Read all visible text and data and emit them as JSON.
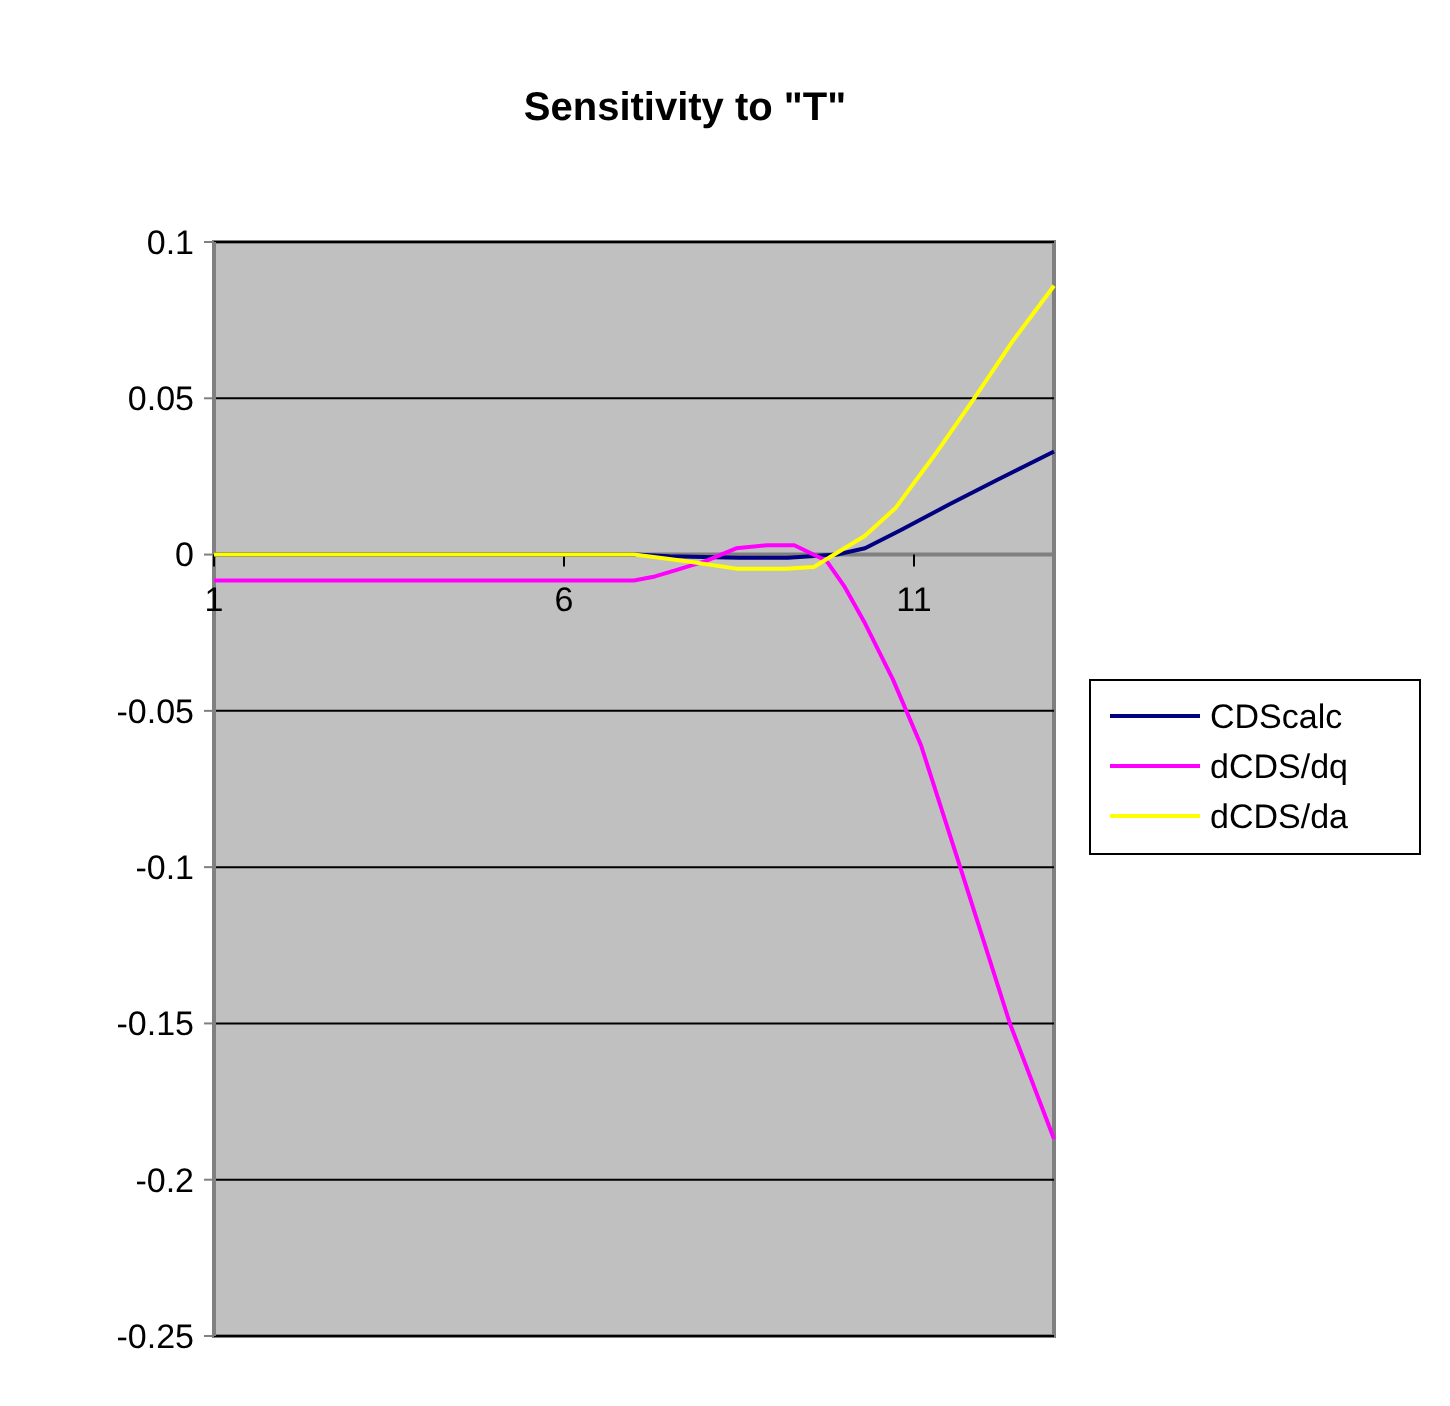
{
  "chart_data": {
    "type": "line",
    "title": "Sensitivity to \"T\"",
    "xlim": [
      1,
      13
    ],
    "xticks": [
      1,
      6,
      11
    ],
    "ylim": [
      -0.25,
      0.1
    ],
    "yticks": [
      0.1,
      0.05,
      0,
      -0.05,
      -0.1,
      -0.15,
      -0.2,
      -0.25
    ],
    "grid": "y",
    "legend": "right",
    "marker": "none",
    "line_style": "solid",
    "series": [
      {
        "name": "CDScalc",
        "color": "#000080",
        "x": [
          1,
          7,
          7.5,
          8.5,
          9.2,
          9.9,
          10.3,
          10.8,
          11.5,
          12.2,
          13
        ],
        "values": [
          0,
          0,
          -0.0005,
          -0.001,
          -0.001,
          0,
          0.002,
          0.0077,
          0.016,
          0.024,
          0.033
        ]
      },
      {
        "name": "dCDS/dq",
        "color": "#ff00ff",
        "x": [
          1,
          7,
          7.3,
          7.6,
          8.03,
          8.46,
          8.9,
          9.29,
          9.66,
          9.75,
          10,
          10.3,
          10.7,
          11.1,
          11.66,
          12.37,
          13
        ],
        "values": [
          -0.0083,
          -0.0083,
          -0.007,
          -0.005,
          -0.002,
          0.002,
          0.003,
          0.003,
          -0.001,
          -0.002,
          -0.01,
          -0.022,
          -0.04,
          -0.061,
          -0.1,
          -0.15,
          -0.187
        ]
      },
      {
        "name": "dCDS/da",
        "color": "#ffff00",
        "x": [
          1,
          7,
          7.7,
          8.46,
          9.17,
          9.57,
          9.86,
          10.3,
          10.74,
          11.3,
          11.86,
          12.4,
          13
        ],
        "values": [
          0,
          0,
          -0.002,
          -0.0045,
          -0.0045,
          -0.004,
          0,
          0.006,
          0.015,
          0.032,
          0.05,
          0.068,
          0.086
        ]
      }
    ]
  }
}
